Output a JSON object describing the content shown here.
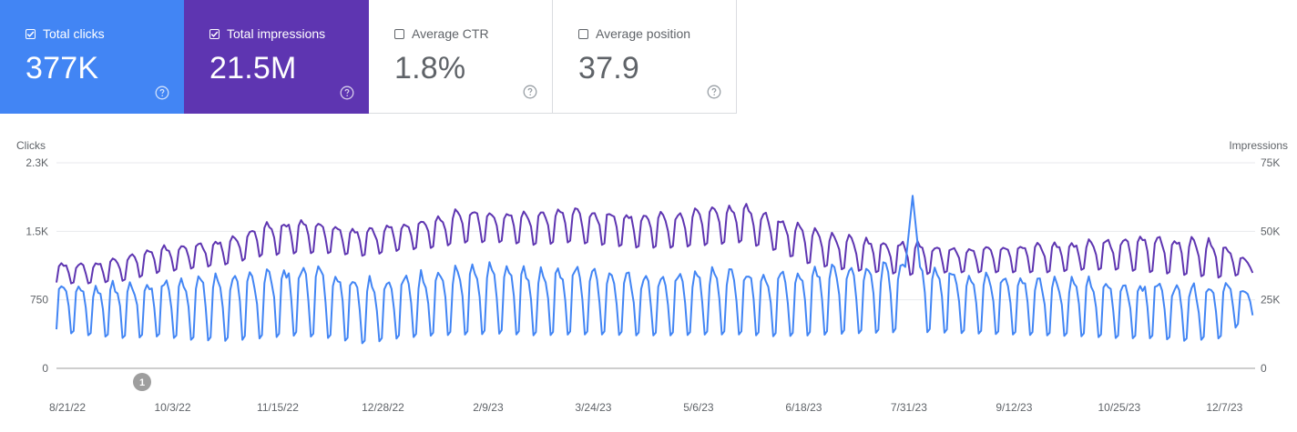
{
  "cards": [
    {
      "label": "Total clicks",
      "value": "377K",
      "checked": true,
      "color": "#4285f4"
    },
    {
      "label": "Total impressions",
      "value": "21.5M",
      "checked": true,
      "color": "#5e35b1"
    },
    {
      "label": "Average CTR",
      "value": "1.8%",
      "checked": false,
      "color": "#ffffff"
    },
    {
      "label": "Average position",
      "value": "37.9",
      "checked": false,
      "color": "#ffffff"
    }
  ],
  "help_icon": "help-circle-icon",
  "annotation_marker": "1",
  "chart_data": {
    "type": "line",
    "x_tick_labels": [
      "8/21/22",
      "10/3/22",
      "11/15/22",
      "12/28/22",
      "2/9/23",
      "3/24/23",
      "5/6/23",
      "6/18/23",
      "7/31/23",
      "9/12/23",
      "10/25/23",
      "12/7/23"
    ],
    "y_left": {
      "label": "Clicks",
      "ticks": [
        "0",
        "750",
        "1.5K",
        "2.3K"
      ],
      "tick_values": [
        0,
        750,
        1500,
        2250
      ],
      "range": [
        0,
        2250
      ]
    },
    "y_right": {
      "label": "Impressions",
      "ticks": [
        "0",
        "25K",
        "50K",
        "75K"
      ],
      "tick_values": [
        0,
        25000,
        50000,
        75000
      ],
      "range": [
        0,
        75000
      ]
    },
    "x_range": [
      "2022-08-21",
      "2023-12-24"
    ],
    "grid": true,
    "series": [
      {
        "name": "Total clicks",
        "axis": "left",
        "color": "#4285f4",
        "weekly": [
          {
            "date": "2022-08-21",
            "high": 950,
            "low": 400
          },
          {
            "date": "2022-09-04",
            "high": 880,
            "low": 360
          },
          {
            "date": "2022-09-18",
            "high": 920,
            "low": 330
          },
          {
            "date": "2022-10-02",
            "high": 940,
            "low": 350
          },
          {
            "date": "2022-10-16",
            "high": 980,
            "low": 310
          },
          {
            "date": "2022-10-30",
            "high": 1000,
            "low": 300
          },
          {
            "date": "2022-11-13",
            "high": 1050,
            "low": 330
          },
          {
            "date": "2022-11-27",
            "high": 1100,
            "low": 360
          },
          {
            "date": "2022-12-11",
            "high": 1080,
            "low": 330
          },
          {
            "date": "2022-12-25",
            "high": 970,
            "low": 270
          },
          {
            "date": "2023-01-08",
            "high": 980,
            "low": 330
          },
          {
            "date": "2023-01-22",
            "high": 1050,
            "low": 360
          },
          {
            "date": "2023-02-05",
            "high": 1080,
            "low": 370
          },
          {
            "date": "2023-02-19",
            "high": 1100,
            "low": 380
          },
          {
            "date": "2023-03-05",
            "high": 1080,
            "low": 360
          },
          {
            "date": "2023-03-19",
            "high": 1100,
            "low": 370
          },
          {
            "date": "2023-04-02",
            "high": 1060,
            "low": 370
          },
          {
            "date": "2023-04-16",
            "high": 1020,
            "low": 360
          },
          {
            "date": "2023-04-30",
            "high": 1000,
            "low": 360
          },
          {
            "date": "2023-05-14",
            "high": 1050,
            "low": 370
          },
          {
            "date": "2023-05-28",
            "high": 1060,
            "low": 370
          },
          {
            "date": "2023-06-11",
            "high": 1030,
            "low": 350
          },
          {
            "date": "2023-06-25",
            "high": 1100,
            "low": 360
          },
          {
            "date": "2023-07-09",
            "high": 1150,
            "low": 380
          },
          {
            "date": "2023-07-23",
            "high": 1100,
            "low": 390
          },
          {
            "date": "2023-08-06",
            "high": 1180,
            "low": 400
          },
          {
            "date": "2023-08-20",
            "high": 1100,
            "low": 390
          },
          {
            "date": "2023-09-03",
            "high": 1000,
            "low": 380
          },
          {
            "date": "2023-09-17",
            "high": 1000,
            "low": 370
          },
          {
            "date": "2023-10-01",
            "high": 980,
            "low": 360
          },
          {
            "date": "2023-10-15",
            "high": 960,
            "low": 350
          },
          {
            "date": "2023-10-29",
            "high": 920,
            "low": 330
          },
          {
            "date": "2023-11-12",
            "high": 940,
            "low": 330
          },
          {
            "date": "2023-11-26",
            "high": 900,
            "low": 300
          },
          {
            "date": "2023-12-10",
            "high": 920,
            "low": 330
          },
          {
            "date": "2023-12-24",
            "high": 860,
            "low": 600
          }
        ],
        "peak": {
          "date": "2023-08-06",
          "value": 1890
        }
      },
      {
        "name": "Total impressions",
        "axis": "right",
        "color": "#5e35b1",
        "weekly": [
          {
            "date": "2022-08-21",
            "high": 38500,
            "low": 31000
          },
          {
            "date": "2022-09-04",
            "high": 38000,
            "low": 31000
          },
          {
            "date": "2022-09-18",
            "high": 41000,
            "low": 32000
          },
          {
            "date": "2022-10-02",
            "high": 44000,
            "low": 35000
          },
          {
            "date": "2022-10-16",
            "high": 45000,
            "low": 36500
          },
          {
            "date": "2022-10-30",
            "high": 47000,
            "low": 38000
          },
          {
            "date": "2022-11-13",
            "high": 52000,
            "low": 41000
          },
          {
            "date": "2022-11-27",
            "high": 54000,
            "low": 42000
          },
          {
            "date": "2022-12-11",
            "high": 52000,
            "low": 42000
          },
          {
            "date": "2022-12-25",
            "high": 50000,
            "low": 41000
          },
          {
            "date": "2023-01-08",
            "high": 53000,
            "low": 43000
          },
          {
            "date": "2023-01-22",
            "high": 55000,
            "low": 44000
          },
          {
            "date": "2023-02-05",
            "high": 58000,
            "low": 46000
          },
          {
            "date": "2023-02-19",
            "high": 57000,
            "low": 46000
          },
          {
            "date": "2023-03-05",
            "high": 57000,
            "low": 45000
          },
          {
            "date": "2023-03-19",
            "high": 58000,
            "low": 46000
          },
          {
            "date": "2023-04-02",
            "high": 57000,
            "low": 45000
          },
          {
            "date": "2023-04-16",
            "high": 56000,
            "low": 44000
          },
          {
            "date": "2023-04-30",
            "high": 56000,
            "low": 44000
          },
          {
            "date": "2023-05-14",
            "high": 58000,
            "low": 45000
          },
          {
            "date": "2023-05-28",
            "high": 60000,
            "low": 46000
          },
          {
            "date": "2023-06-11",
            "high": 55000,
            "low": 43000
          },
          {
            "date": "2023-06-25",
            "high": 51000,
            "low": 38000
          },
          {
            "date": "2023-07-09",
            "high": 48000,
            "low": 36000
          },
          {
            "date": "2023-07-23",
            "high": 46000,
            "low": 35000
          },
          {
            "date": "2023-08-06",
            "high": 46000,
            "low": 34000
          },
          {
            "date": "2023-08-20",
            "high": 44000,
            "low": 35000
          },
          {
            "date": "2023-09-03",
            "high": 44000,
            "low": 35000
          },
          {
            "date": "2023-09-17",
            "high": 45000,
            "low": 35000
          },
          {
            "date": "2023-10-01",
            "high": 45000,
            "low": 35000
          },
          {
            "date": "2023-10-15",
            "high": 46000,
            "low": 36000
          },
          {
            "date": "2023-10-29",
            "high": 47000,
            "low": 36000
          },
          {
            "date": "2023-11-12",
            "high": 48000,
            "low": 35000
          },
          {
            "date": "2023-11-26",
            "high": 47000,
            "low": 34000
          },
          {
            "date": "2023-12-10",
            "high": 46000,
            "low": 33000
          },
          {
            "date": "2023-12-24",
            "high": 37000,
            "low": 35000
          }
        ]
      }
    ]
  }
}
